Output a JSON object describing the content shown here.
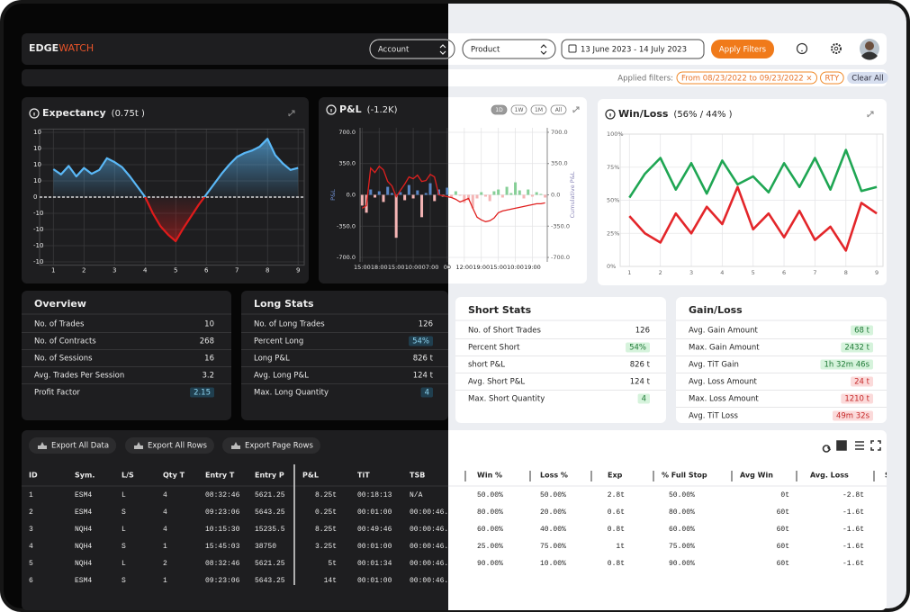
{
  "header": {
    "logo_main": "EDGE",
    "logo_accent": "WATCH",
    "account": "Account",
    "product": "Product",
    "date_range": "13 June 2023 - 14 July 2023",
    "apply": "Apply Filters"
  },
  "filters": {
    "label": "Applied filters:",
    "chips": [
      "From 08/23/2022 to 09/23/2022 ×",
      "RTY"
    ],
    "clear": "Clear All"
  },
  "chart_data": [
    {
      "type": "area",
      "title": "Expectancy",
      "subtitle": "(0.75t )",
      "color": "#5ab8f7",
      "negative_color": "#e01b1b",
      "grid": true,
      "x": [
        1,
        1.25,
        1.5,
        1.75,
        2,
        2.25,
        2.5,
        2.75,
        3,
        3.25,
        3.5,
        3.75,
        4,
        4.25,
        4.5,
        4.75,
        5,
        5.25,
        5.5,
        5.75,
        6,
        6.25,
        6.5,
        6.75,
        7,
        7.25,
        7.5,
        7.75,
        8,
        8.25,
        8.5,
        8.75,
        9
      ],
      "values": [
        4.3,
        3.5,
        4.8,
        3.2,
        4.5,
        3.6,
        4.2,
        6.0,
        5.4,
        4.6,
        3.2,
        1.6,
        0,
        -2.5,
        -4.5,
        -5.8,
        -6.8,
        -4.8,
        -3.0,
        -1.2,
        0.4,
        2.0,
        3.6,
        5.0,
        6.2,
        6.8,
        7.2,
        7.8,
        9.0,
        6.5,
        5.2,
        4.2,
        4.5
      ],
      "xlim": [
        0.55,
        9.2
      ],
      "xticks": [
        1,
        2,
        3,
        4,
        5,
        6,
        7,
        8,
        9
      ],
      "ylim": [
        -10.5,
        10.5
      ],
      "yticks": [
        10,
        {
          "value": 7.5,
          "label": "10"
        },
        {
          "value": 5,
          "label": "10"
        },
        {
          "value": 2.5,
          "label": "10"
        },
        0,
        {
          "value": -2.5,
          "label": "-10"
        },
        {
          "value": -5,
          "label": "-10"
        },
        {
          "value": -7.5,
          "label": "-10"
        },
        -10
      ]
    },
    {
      "type": "bar",
      "title": "P&L",
      "subtitle": "(-1.2K)",
      "range_buttons": [
        "1D",
        "1W",
        "1M",
        "All"
      ],
      "grid": true,
      "ylabel": "P&L",
      "y2label": "Cumulative P&L",
      "categories": [
        "15:00",
        null,
        null,
        null,
        "18:00",
        null,
        null,
        null,
        "15:00",
        null,
        null,
        null,
        "10:00",
        null,
        null,
        null,
        "07:00",
        null,
        null,
        null,
        "00",
        null,
        null,
        null,
        "12:00",
        null,
        null,
        null,
        "19:00",
        null,
        null,
        null,
        "15:00",
        null,
        null,
        null,
        "10:00",
        null,
        null,
        null,
        "19:00",
        null,
        null,
        null
      ],
      "series": [
        {
          "type": "bar",
          "color": "#5a86c5",
          "negative_color": "#f4b4b4",
          "values": [
            -120,
            -200,
            60,
            -30,
            40,
            -80,
            90,
            20,
            -480,
            30,
            -60,
            110,
            -40,
            50,
            -250,
            20,
            130,
            -70,
            60,
            -20,
            80,
            -30,
            40,
            -10,
            -90,
            -60,
            -150,
            -40,
            30,
            -20,
            -70,
            40,
            60,
            -30,
            90,
            20,
            140,
            50,
            -40,
            60,
            -20,
            30,
            10,
            -30
          ]
        },
        {
          "type": "line",
          "axis": "y2",
          "color": "#e0201f",
          "values": [
            -150,
            -120,
            300,
            250,
            320,
            280,
            150,
            100,
            -20,
            50,
            120,
            200,
            180,
            220,
            150,
            160,
            230,
            200,
            0,
            -10,
            -20,
            -30,
            -50,
            -80,
            -60,
            -40,
            -150,
            -250,
            -280,
            -300,
            -290,
            -260,
            -200,
            -180,
            -170,
            -160,
            -150,
            -140,
            -130,
            -120,
            -110,
            -100,
            -100,
            -90
          ]
        }
      ],
      "ylim": [
        -750,
        750
      ],
      "yticks": [
        {
          "value": 700,
          "label": "700.0"
        },
        {
          "value": 350,
          "label": "350.0"
        },
        {
          "value": 0,
          "label": "0.0"
        },
        {
          "value": -350,
          "label": "-350.0"
        },
        {
          "value": -700,
          "label": "-700.0"
        }
      ],
      "y2lim": [
        -750,
        750
      ],
      "y2ticks": [
        {
          "value": 700,
          "label": "700.0"
        },
        {
          "value": 350,
          "label": "350.0"
        },
        {
          "value": 0,
          "label": "0.0"
        },
        {
          "value": -350,
          "label": "-350.0"
        },
        {
          "value": -700,
          "label": "-700.0"
        }
      ]
    },
    {
      "type": "line",
      "title": "Win/Loss",
      "subtitle": "(56% / 44% )",
      "grid": true,
      "x": [
        1,
        1.5,
        2,
        2.5,
        3,
        3.5,
        4,
        4.5,
        5,
        5.5,
        6,
        6.5,
        7,
        7.5,
        8,
        8.5,
        9
      ],
      "series": [
        {
          "color": "#1fa653",
          "values": [
            52,
            70,
            82,
            58,
            78,
            55,
            80,
            62,
            68,
            56,
            78,
            60,
            82,
            58,
            88,
            57,
            60
          ]
        },
        {
          "color": "#e3262a",
          "values": [
            38,
            25,
            18,
            40,
            25,
            45,
            32,
            60,
            28,
            40,
            22,
            42,
            20,
            30,
            12,
            48,
            40
          ]
        }
      ],
      "xlim": [
        0.7,
        9.2
      ],
      "xticks": [
        1,
        2,
        3,
        4,
        5,
        6,
        7,
        8,
        9
      ],
      "ylim": [
        0,
        100
      ],
      "yticks": [
        {
          "value": 100,
          "label": "100%"
        },
        {
          "value": 75,
          "label": "75%"
        },
        {
          "value": 50,
          "label": "50%"
        },
        {
          "value": 25,
          "label": "25%"
        },
        {
          "value": 0,
          "label": "0%"
        }
      ]
    }
  ],
  "stats": [
    {
      "title": "Overview",
      "rows": [
        {
          "label": "No. of Trades",
          "value": "10"
        },
        {
          "label": "No. of Contracts",
          "value": "268"
        },
        {
          "label": "No. of Sessions",
          "value": "16"
        },
        {
          "label": "Avg. Trades Per Session",
          "value": "3.2"
        },
        {
          "label": "Profit Factor",
          "value": "2.15",
          "badge": "blue"
        }
      ]
    },
    {
      "title": "Long Stats",
      "rows": [
        {
          "label": "No. of Long Trades",
          "value": "126"
        },
        {
          "label": "Percent Long",
          "value": "54%",
          "badge": "blue"
        },
        {
          "label": "Long P&L",
          "value": "826 t"
        },
        {
          "label": "Avg. Long P&L",
          "value": "124 t"
        },
        {
          "label": "Max. Long Quantity",
          "value": "4",
          "badge": "blue"
        }
      ]
    },
    {
      "title": "Short Stats",
      "rows": [
        {
          "label": "No. of Short Trades",
          "value": "126"
        },
        {
          "label": "Percent Short",
          "value": "54%",
          "badge": "green"
        },
        {
          "label": "short P&L",
          "value": "826 t"
        },
        {
          "label": "Avg. Short P&L",
          "value": "124 t"
        },
        {
          "label": "Max. Short Quantity",
          "value": "4",
          "badge": "green"
        }
      ]
    },
    {
      "title": "Gain/Loss",
      "rows": [
        {
          "label": "Avg. Gain Amount",
          "value": "68 t",
          "badge": "green"
        },
        {
          "label": "Max. Gain Amount",
          "value": "2432 t",
          "badge": "green"
        },
        {
          "label": "Avg. TiT Gain",
          "value": "1h 32m 46s",
          "badge": "green"
        },
        {
          "label": "Avg. Loss Amount",
          "value": "24 t",
          "badge": "red"
        },
        {
          "label": "Max. Loss Amount",
          "value": "1210 t",
          "badge": "red"
        },
        {
          "label": "Avg. TiT Loss",
          "value": "49m 32s",
          "badge": "red"
        }
      ]
    }
  ],
  "table": {
    "buttons": [
      "Export All Data",
      "Export All Rows",
      "Export Page Rows"
    ],
    "columns": [
      "ID",
      "Sym.",
      "L/S",
      "Qty T",
      "Entry T",
      "Entry P",
      "P&L",
      "TiT",
      "TSB",
      "Win %",
      "Loss %",
      "Exp",
      "% Full Stop",
      "Avg Win",
      "Avg. Loss",
      "S"
    ],
    "rows": [
      [
        "1",
        "ESM4",
        "L",
        "4",
        "08:32:46",
        "5621.25",
        "8.25t",
        "00:18:13",
        "N/A",
        "50.00%",
        "50.00%",
        "2.8t",
        "50.00%",
        "0t",
        "-2.8t"
      ],
      [
        "2",
        "ESM4",
        "S",
        "4",
        "09:23:06",
        "5643.25",
        "0.25t",
        "00:01:00",
        "00:00:46.",
        "80.00%",
        "20.00%",
        "0.6t",
        "80.00%",
        "60t",
        "-1.6t"
      ],
      [
        "3",
        "NQH4",
        "L",
        "4",
        "10:15:30",
        "15235.5",
        "8.25t",
        "00:49:46",
        "00:00:46.",
        "60.00%",
        "40.00%",
        "0.8t",
        "60.00%",
        "60t",
        "-1.6t"
      ],
      [
        "4",
        "NQH4",
        "S",
        "1",
        "15:45:03",
        "38750",
        "3.25t",
        "00:01:00",
        "00:00:46.",
        "25.00%",
        "75.00%",
        "1t",
        "75.00%",
        "60t",
        "-1.6t"
      ],
      [
        "5",
        "NQH4",
        "L",
        "2",
        "08:32:46",
        "5621.25",
        "5t",
        "00:01:34",
        "00:00:46.",
        "90.00%",
        "10.00%",
        "0.8t",
        "90.00%",
        "60t",
        "-1.6t"
      ],
      [
        "6",
        "ESM4",
        "S",
        "1",
        "09:23:06",
        "5643.25",
        "14t",
        "00:01:00",
        "00:00:46."
      ]
    ]
  }
}
